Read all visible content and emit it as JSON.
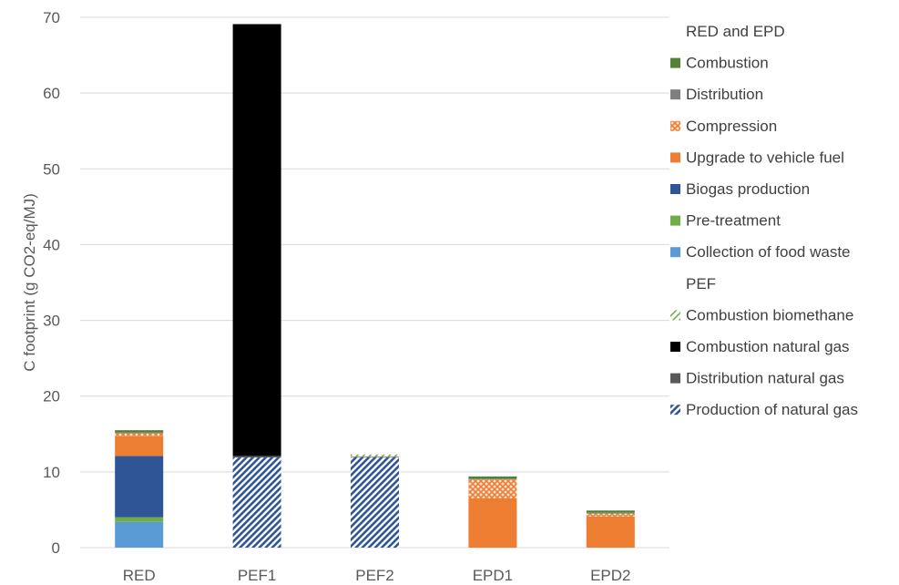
{
  "chart_data": {
    "type": "bar",
    "stacked": true,
    "categories": [
      "RED",
      "PEF1",
      "PEF2",
      "EPD1",
      "EPD2"
    ],
    "ylabel": "C footprint (g CO2-eq/MJ)",
    "xlabel": "",
    "ylim": [
      0,
      70
    ],
    "yticks": [
      0,
      10,
      20,
      30,
      40,
      50,
      60,
      70
    ],
    "grid": true,
    "legend_position": "right",
    "legend_groups": [
      {
        "header": "RED and EPD",
        "series": [
          "combustion",
          "distribution",
          "compression",
          "upgrade",
          "biogas",
          "pretreatment",
          "collection"
        ]
      },
      {
        "header": "PEF",
        "series": [
          "combustion_biomethane",
          "combustion_ng",
          "distribution_ng",
          "production_ng"
        ]
      }
    ],
    "series": [
      {
        "id": "collection",
        "name": "Collection of food waste",
        "color": "#5b9bd5",
        "pattern": "solid",
        "values": [
          3.4,
          0,
          0,
          0,
          0
        ]
      },
      {
        "id": "pretreatment",
        "name": "Pre-treatment",
        "color": "#70ad47",
        "pattern": "solid",
        "values": [
          0.6,
          0,
          0,
          0,
          0
        ]
      },
      {
        "id": "biogas",
        "name": "Biogas production",
        "color": "#2f5597",
        "pattern": "solid",
        "values": [
          8.1,
          0,
          0,
          0,
          0
        ]
      },
      {
        "id": "upgrade",
        "name": "Upgrade to vehicle fuel",
        "color": "#ed7d31",
        "pattern": "solid",
        "values": [
          2.6,
          0,
          0,
          6.5,
          4.1
        ]
      },
      {
        "id": "compression",
        "name": "Compression",
        "color": "#ed7d31",
        "pattern": "crosshatch",
        "values": [
          0.4,
          0,
          0,
          2.5,
          0.4
        ]
      },
      {
        "id": "distribution",
        "name": "Distribution",
        "color": "#7f7f7f",
        "pattern": "solid",
        "values": [
          0.1,
          0,
          0,
          0.1,
          0.1
        ]
      },
      {
        "id": "combustion",
        "name": "Combustion",
        "color": "#548235",
        "pattern": "solid",
        "values": [
          0.3,
          0,
          0,
          0.3,
          0.3
        ]
      },
      {
        "id": "production_ng",
        "name": "Production of natural gas",
        "color": "#2f5597",
        "pattern": "diagonal",
        "values": [
          0,
          11.9,
          11.9,
          0,
          0
        ]
      },
      {
        "id": "distribution_ng",
        "name": "Distribution natural gas",
        "color": "#595959",
        "pattern": "solid",
        "values": [
          0,
          0.2,
          0.1,
          0,
          0
        ]
      },
      {
        "id": "combustion_ng",
        "name": "Combustion natural gas",
        "color": "#000000",
        "pattern": "solid",
        "values": [
          0,
          57.0,
          0,
          0,
          0
        ]
      },
      {
        "id": "combustion_biomethane",
        "name": "Combustion biomethane",
        "color": "#70ad47",
        "pattern": "diagonal-light",
        "values": [
          0,
          0,
          0.3,
          0,
          0
        ]
      }
    ]
  }
}
